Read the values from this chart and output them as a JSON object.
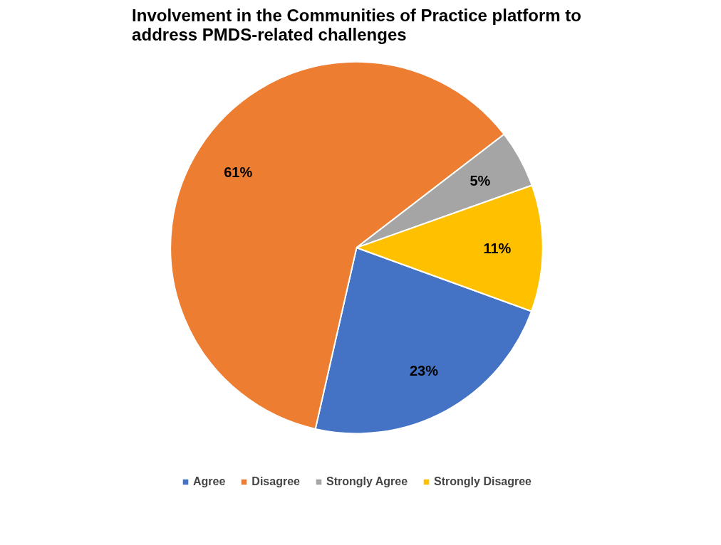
{
  "chart_data": {
    "type": "pie",
    "title": "Involvement in the Communities of Practice platform to\naddress PMDS-related challenges",
    "categories": [
      "Agree",
      "Disagree",
      "Strongly Agree",
      "Strongly Disagree"
    ],
    "values": [
      23,
      61,
      5,
      11
    ],
    "colors": [
      "#4472c4",
      "#ed7d31",
      "#a5a5a5",
      "#ffc000"
    ],
    "value_labels": [
      "23%",
      "61%",
      "5%",
      "11%"
    ],
    "legend": "bottom"
  }
}
